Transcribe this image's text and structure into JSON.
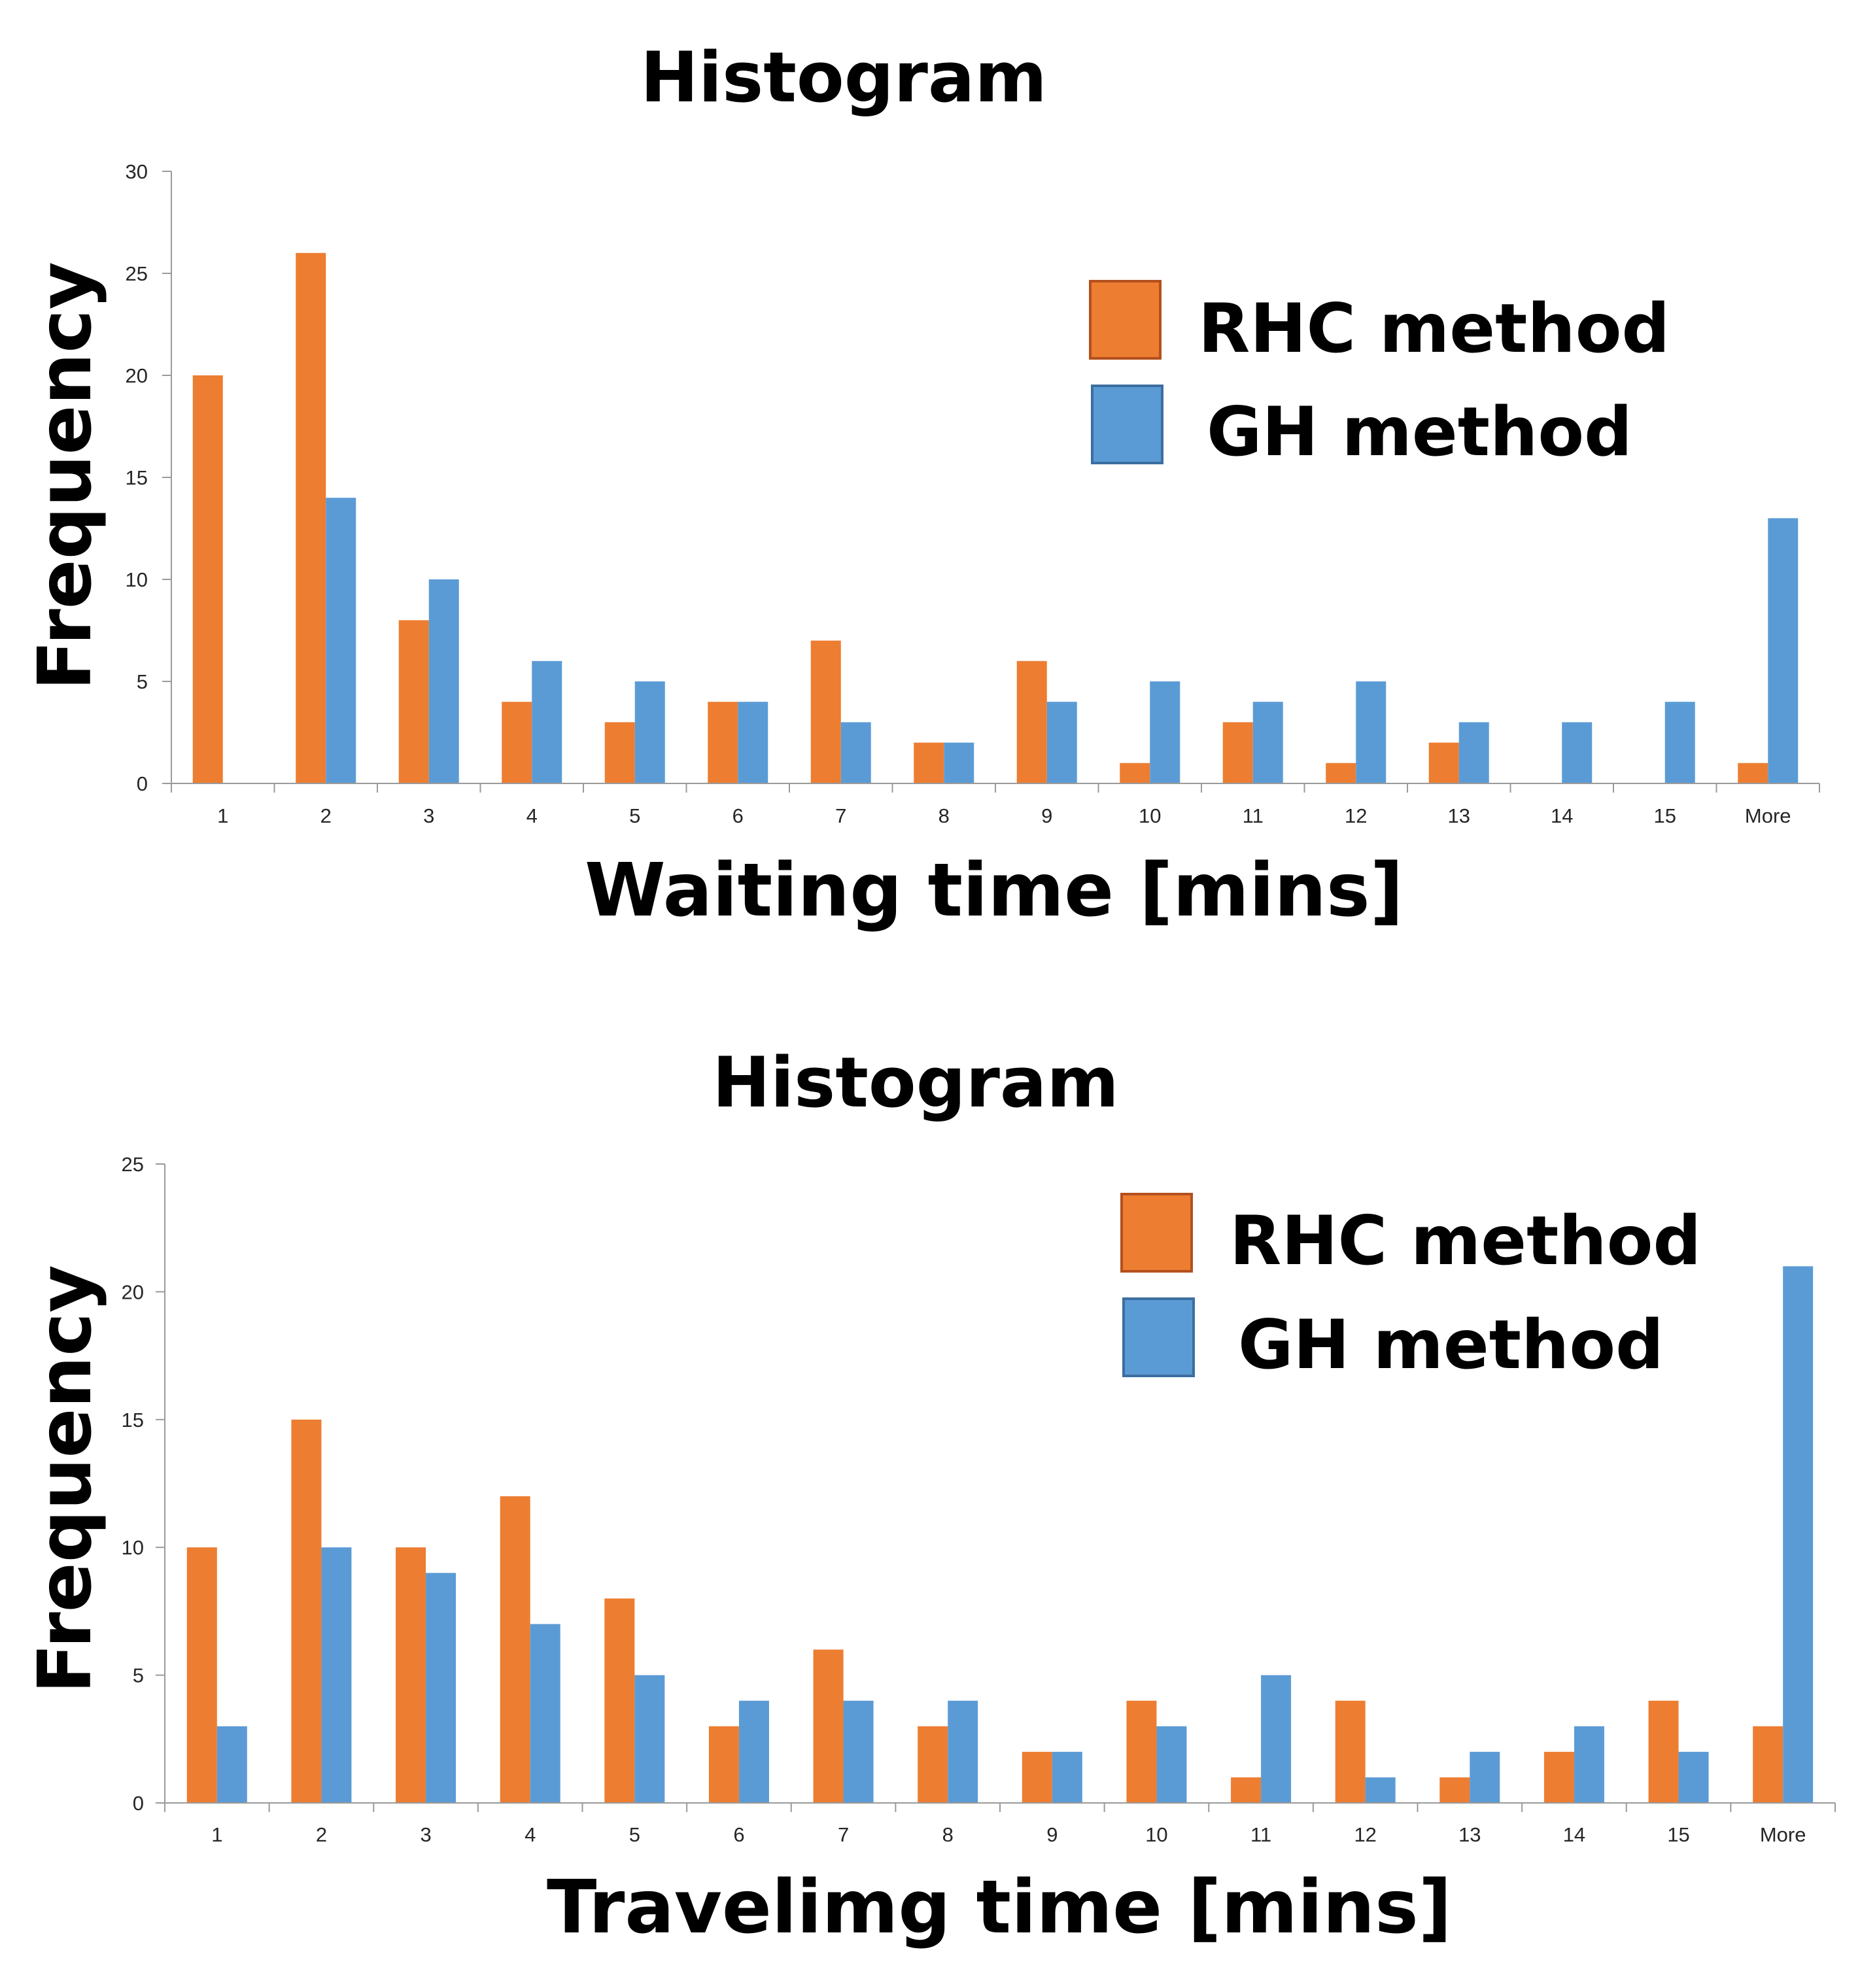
{
  "colors": {
    "rhc": "#ED7D31",
    "rhc_border": "#B4501E",
    "gh": "#5B9BD5",
    "gh_border": "#3C6EA0",
    "axis": "#9A9A9A",
    "text": "#262626"
  },
  "chart_data": [
    {
      "type": "bar",
      "title": "Histogram",
      "xlabel": "Waiting time [mins]",
      "ylabel": "Frequency",
      "categories": [
        "1",
        "2",
        "3",
        "4",
        "5",
        "6",
        "7",
        "8",
        "9",
        "10",
        "11",
        "12",
        "13",
        "14",
        "15",
        "More"
      ],
      "ylim": [
        0,
        30
      ],
      "yticks": [
        0,
        5,
        10,
        15,
        20,
        25,
        30
      ],
      "grid": false,
      "legend_position": "top-right",
      "series": [
        {
          "name": "RHC method",
          "values": [
            20,
            26,
            8,
            4,
            3,
            4,
            7,
            2,
            6,
            1,
            3,
            1,
            2,
            0,
            0,
            1
          ]
        },
        {
          "name": "GH method",
          "values": [
            0,
            14,
            10,
            6,
            5,
            4,
            3,
            2,
            4,
            5,
            4,
            5,
            3,
            3,
            4,
            13
          ]
        }
      ]
    },
    {
      "type": "bar",
      "title": "Histogram",
      "xlabel": "Travelimg time [mins]",
      "ylabel": "Frequency",
      "categories": [
        "1",
        "2",
        "3",
        "4",
        "5",
        "6",
        "7",
        "8",
        "9",
        "10",
        "11",
        "12",
        "13",
        "14",
        "15",
        "More"
      ],
      "ylim": [
        0,
        25
      ],
      "yticks": [
        0,
        5,
        10,
        15,
        20,
        25
      ],
      "grid": false,
      "legend_position": "top-right",
      "series": [
        {
          "name": "RHC method",
          "values": [
            10,
            15,
            10,
            12,
            8,
            3,
            6,
            3,
            2,
            4,
            1,
            4,
            1,
            2,
            4,
            3
          ]
        },
        {
          "name": "GH method",
          "values": [
            3,
            10,
            9,
            7,
            5,
            4,
            4,
            4,
            2,
            3,
            5,
            1,
            2,
            3,
            2,
            21
          ]
        }
      ]
    }
  ]
}
